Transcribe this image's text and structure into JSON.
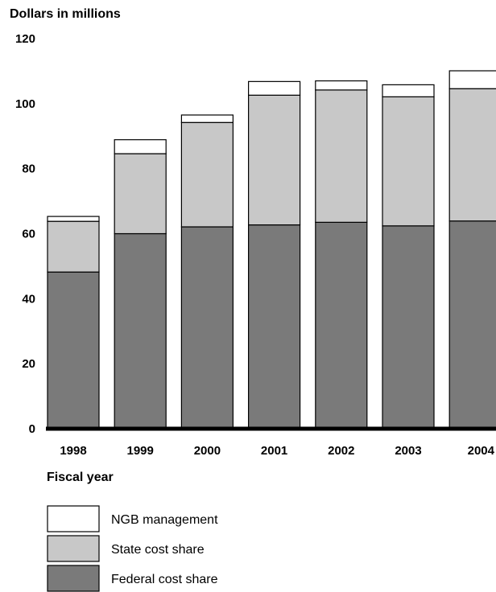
{
  "chart_data": {
    "type": "bar",
    "stacked": true,
    "ylabel": "Dollars in millions",
    "xlabel": "Fiscal year",
    "ylim": [
      0,
      120
    ],
    "yticks": [
      0,
      20,
      40,
      60,
      80,
      100,
      120
    ],
    "categories": [
      "1998",
      "1999",
      "2000",
      "2001",
      "2002",
      "2003",
      "2004"
    ],
    "series": [
      {
        "name": "Federal cost share",
        "color": "#7a7a7a",
        "values": [
          48.2,
          60.0,
          62.1,
          62.7,
          63.5,
          62.4,
          63.9
        ]
      },
      {
        "name": "State cost share",
        "color": "#c8c8c8",
        "values": [
          15.6,
          24.6,
          32.1,
          39.9,
          40.7,
          39.7,
          40.7
        ]
      },
      {
        "name": "NGB management",
        "color": "#ffffff",
        "values": [
          1.5,
          4.3,
          2.3,
          4.2,
          2.8,
          3.7,
          5.5
        ]
      }
    ],
    "legend": {
      "placement": "bottom-left",
      "order": [
        "NGB management",
        "State cost share",
        "Federal cost share"
      ]
    },
    "grid": false
  }
}
